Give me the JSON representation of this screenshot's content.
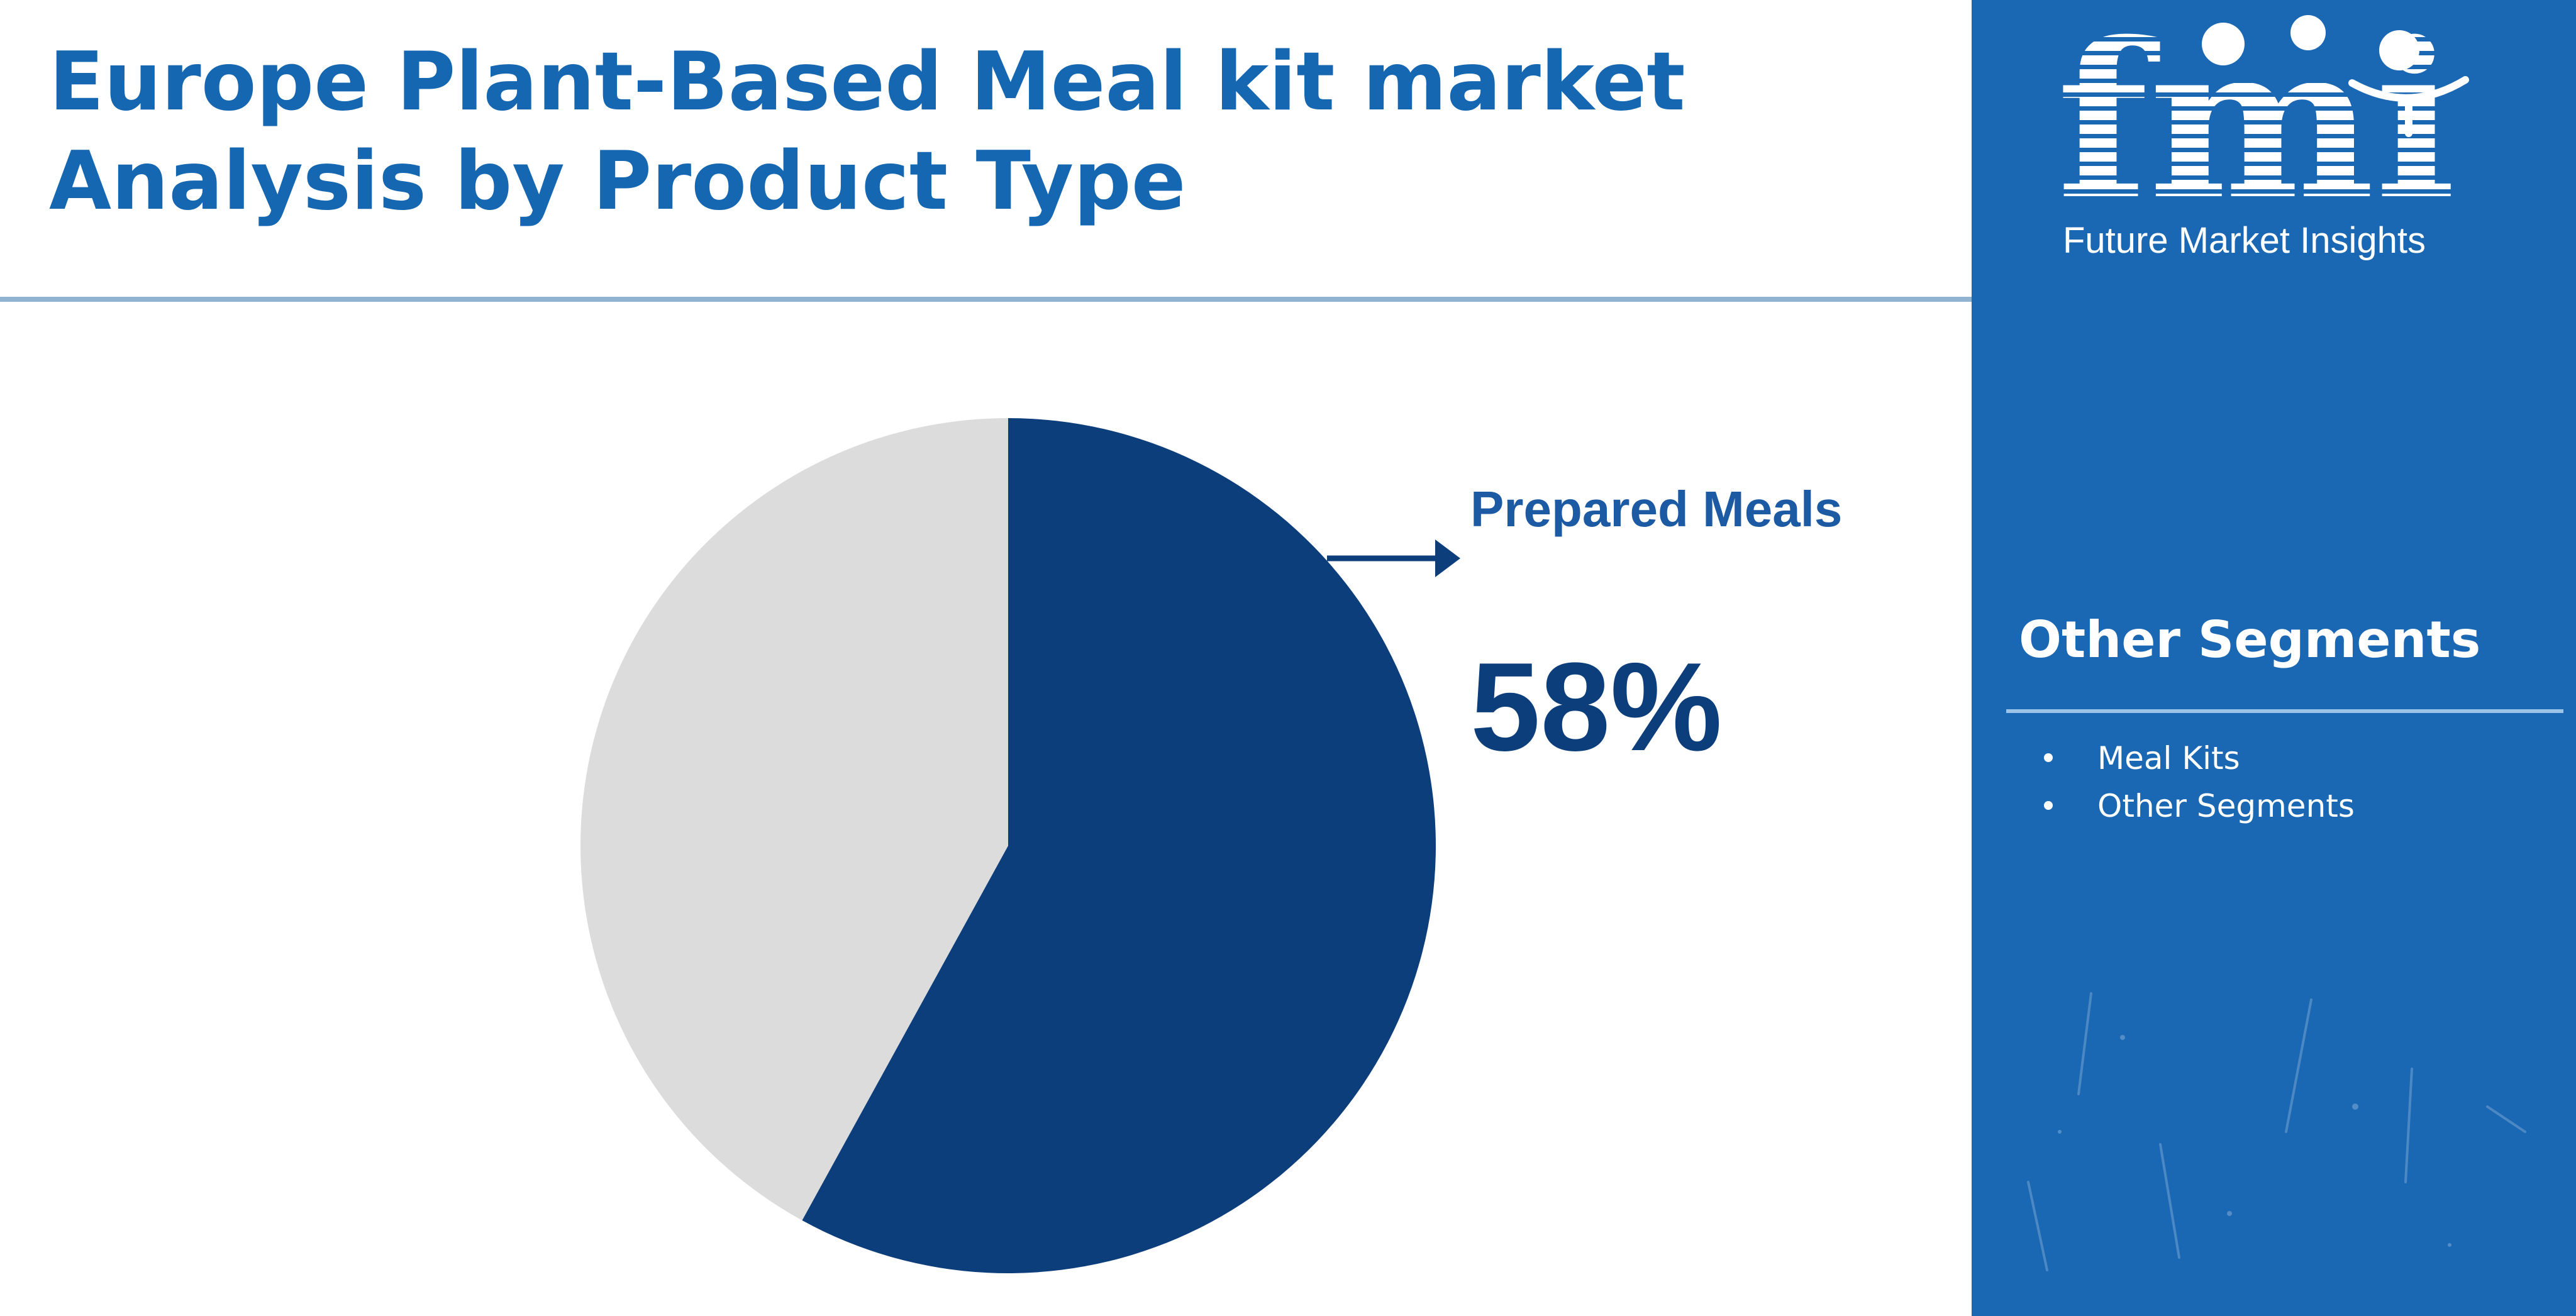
{
  "title": "Europe Plant-Based Meal kit market Analysis by Product Type",
  "brand": {
    "logo_letters": "fmi",
    "name": "Future Market Insights"
  },
  "callout": {
    "label": "Prepared Meals",
    "value_text": "58%"
  },
  "other_segments": {
    "title": "Other Segments",
    "items": [
      "Meal Kits",
      "Other Segments"
    ]
  },
  "colors": {
    "title": "#1467b0",
    "highlight_slice": "#0c3e7c",
    "other_slice": "#dcdcdc",
    "side_panel": "#1a67b4"
  },
  "chart_data": {
    "type": "pie",
    "slices": [
      {
        "label": "Prepared Meals",
        "value": 58,
        "color": "#0c3e7c"
      },
      {
        "label": "Other",
        "value": 42,
        "color": "#dcdcdc"
      }
    ],
    "start_angle_deg": 0,
    "direction": "clockwise",
    "title": "Europe Plant-Based Meal kit market Analysis by Product Type"
  }
}
